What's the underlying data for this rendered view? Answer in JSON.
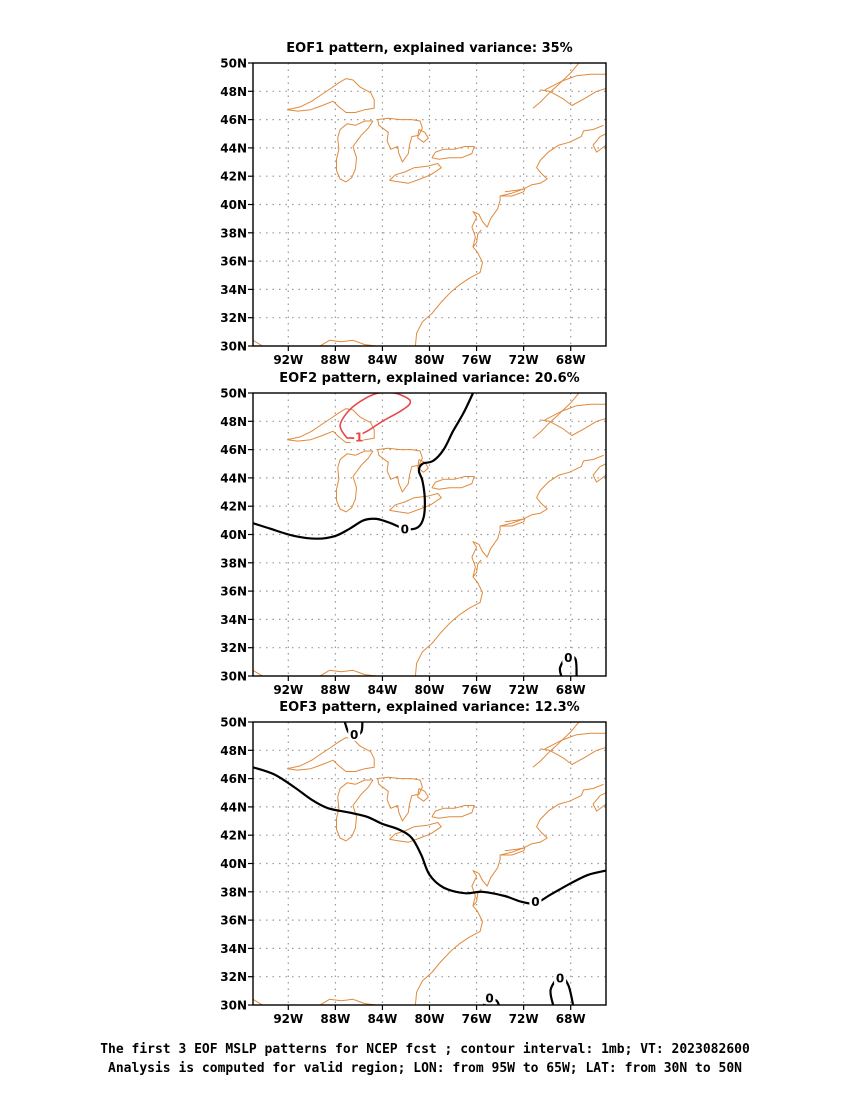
{
  "figure": {
    "caption_line1": "The first 3 EOF MSLP patterns for NCEP fcst ; contour interval: 1mb; VT: 2023082600",
    "caption_line2": "Analysis is computed for valid region; LON: from 95W to 65W; LAT: from 30N to 50N"
  },
  "map_extent": {
    "lon": [
      -95,
      -65
    ],
    "lat": [
      30,
      50
    ]
  },
  "lon_ticks": [
    "92W",
    "88W",
    "84W",
    "80W",
    "76W",
    "72W",
    "68W"
  ],
  "lat_ticks": [
    "50N",
    "48N",
    "46N",
    "44N",
    "42N",
    "40N",
    "38N",
    "36N",
    "34N",
    "32N",
    "30N"
  ],
  "grid": true,
  "colors": {
    "coastline": "#e08a3c",
    "zero_contour": "#000000",
    "negative_contour": "#e8474a",
    "grid": "#999999"
  },
  "panels": [
    {
      "title": "EOF1 pattern, explained variance: 35%",
      "contours": []
    },
    {
      "title": "EOF2 pattern, explained variance: 20.6%",
      "contours": [
        {
          "level": "0",
          "label": "0",
          "points": [
            [
              -95,
              40.8
            ],
            [
              -93.5,
              40.4
            ],
            [
              -91.5,
              39.9
            ],
            [
              -89.5,
              39.7
            ],
            [
              -88,
              39.9
            ],
            [
              -86.8,
              40.4
            ],
            [
              -85.6,
              41
            ],
            [
              -84.5,
              41.1
            ],
            [
              -83.3,
              40.8
            ],
            [
              -82.1,
              40.4
            ],
            [
              -81,
              40.5
            ],
            [
              -80.5,
              41.2
            ],
            [
              -80.4,
              42.5
            ],
            [
              -80.6,
              43.8
            ],
            [
              -80.9,
              44.5
            ],
            [
              -80.6,
              45
            ],
            [
              -79.7,
              45.2
            ],
            [
              -78.8,
              46
            ],
            [
              -78,
              47.3
            ],
            [
              -77.1,
              48.6
            ],
            [
              -76.3,
              50
            ]
          ],
          "label_at": [
            -82.1,
            40.4
          ]
        },
        {
          "level": "-1",
          "label": "-1",
          "points": [
            [
              -87,
              46.8
            ],
            [
              -87.6,
              47.7
            ],
            [
              -86.8,
              48.8
            ],
            [
              -85.5,
              49.6
            ],
            [
              -84.3,
              50
            ],
            [
              -83,
              50
            ],
            [
              -81.8,
              49.6
            ],
            [
              -81.7,
              49.2
            ],
            [
              -82.5,
              48.7
            ],
            [
              -84,
              48
            ],
            [
              -85.3,
              47.3
            ],
            [
              -86.4,
              46.9
            ],
            [
              -87,
              46.8
            ]
          ],
          "label_at": [
            -86.2,
            46.9
          ]
        },
        {
          "level": "0",
          "label": "0",
          "points": [
            [
              -68.8,
              30
            ],
            [
              -68.9,
              30.6
            ],
            [
              -68.3,
              31.4
            ],
            [
              -67.6,
              31.2
            ],
            [
              -67.5,
              30
            ]
          ],
          "label_at": [
            -68.2,
            31.3
          ]
        }
      ]
    },
    {
      "title": "EOF3 pattern, explained variance: 12.3%",
      "contours": [
        {
          "level": "0",
          "label": "0",
          "points": [
            [
              -95,
              46.8
            ],
            [
              -93.2,
              46.3
            ],
            [
              -91.5,
              45.4
            ],
            [
              -90,
              44.5
            ],
            [
              -88.6,
              43.9
            ],
            [
              -86.8,
              43.6
            ],
            [
              -85.3,
              43.3
            ],
            [
              -84,
              42.8
            ],
            [
              -82.6,
              42.4
            ],
            [
              -81.5,
              41.8
            ],
            [
              -80.7,
              40.6
            ],
            [
              -80,
              39.2
            ],
            [
              -78.8,
              38.3
            ],
            [
              -77,
              37.9
            ],
            [
              -75.5,
              38
            ],
            [
              -73.6,
              37.7
            ],
            [
              -72.2,
              37.3
            ],
            [
              -71,
              37.2
            ],
            [
              -69.7,
              37.8
            ],
            [
              -68,
              38.6
            ],
            [
              -66.5,
              39.2
            ],
            [
              -65,
              39.5
            ]
          ],
          "label_at": [
            -71,
            37.3
          ]
        },
        {
          "level": "0",
          "label": "0",
          "points": [
            [
              -87.2,
              50
            ],
            [
              -86.9,
              49.3
            ],
            [
              -86.4,
              49
            ],
            [
              -85.8,
              49.3
            ],
            [
              -85.7,
              50
            ]
          ],
          "label_at": [
            -86.4,
            49.1
          ]
        },
        {
          "level": "0",
          "label": "0",
          "points": [
            [
              -69.5,
              30
            ],
            [
              -69.7,
              31.1
            ],
            [
              -68.9,
              32
            ],
            [
              -68.2,
              31.4
            ],
            [
              -67.8,
              30
            ]
          ],
          "label_at": [
            -68.9,
            31.9
          ]
        },
        {
          "level": "0",
          "label": "0",
          "points": [
            [
              -75.4,
              30
            ],
            [
              -74.9,
              30.5
            ],
            [
              -74.3,
              30.3
            ],
            [
              -74.1,
              30
            ]
          ],
          "label_at": [
            -74.9,
            30.5
          ]
        }
      ]
    }
  ]
}
